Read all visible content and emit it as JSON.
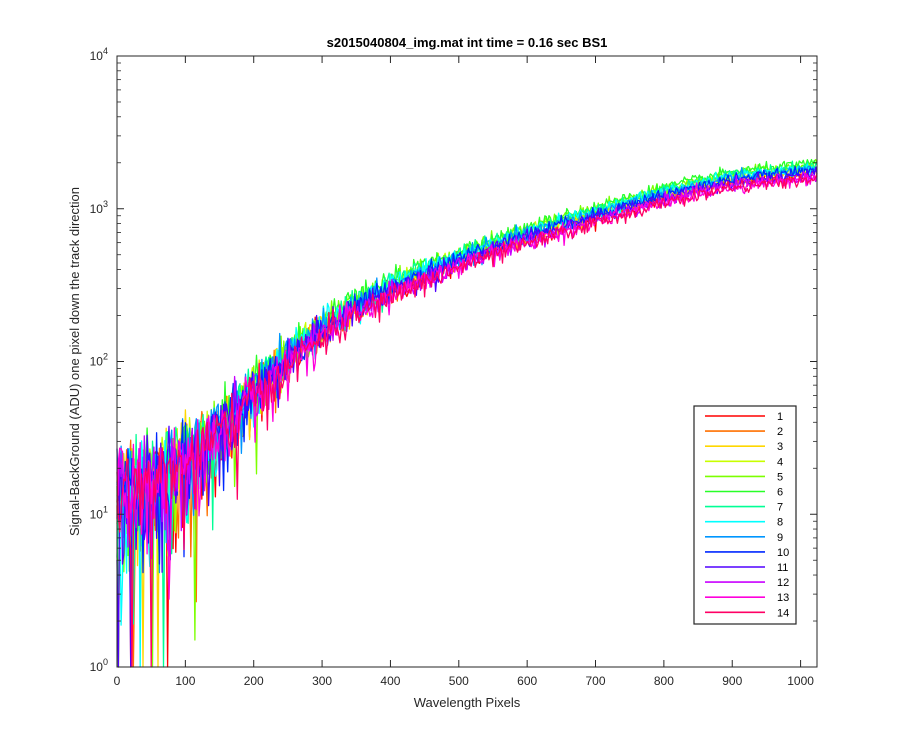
{
  "chart_data": {
    "type": "line",
    "title": "s2015040804_img.mat int time = 0.16 sec   BS1",
    "xlabel": "Wavelength Pixels",
    "ylabel": "Signal-BackGround (ADU) one pixel down the track direction",
    "xlim": [
      0,
      1024
    ],
    "ylim": [
      1,
      10000
    ],
    "yscale": "log",
    "grid": false,
    "legend_position": "lower-right",
    "x_ticks": [
      "0",
      "100",
      "200",
      "300",
      "400",
      "500",
      "600",
      "700",
      "800",
      "900",
      "1000"
    ],
    "y_ticks": [
      {
        "base": "10",
        "exp": "0"
      },
      {
        "base": "10",
        "exp": "1"
      },
      {
        "base": "10",
        "exp": "2"
      },
      {
        "base": "10",
        "exp": "3"
      },
      {
        "base": "10",
        "exp": "4"
      }
    ],
    "trend": {
      "x": [
        0,
        50,
        100,
        150,
        200,
        250,
        300,
        400,
        500,
        600,
        700,
        800,
        900,
        1024
      ],
      "y": [
        14,
        16,
        22,
        34,
        62,
        100,
        160,
        290,
        450,
        640,
        880,
        1180,
        1500,
        1700
      ]
    },
    "series": [
      {
        "name": "1",
        "color": "#ff0000",
        "scale": 1.0
      },
      {
        "name": "2",
        "color": "#ff7000",
        "scale": 1.02
      },
      {
        "name": "3",
        "color": "#ffd700",
        "scale": 1.05
      },
      {
        "name": "4",
        "color": "#c8ff00",
        "scale": 1.1
      },
      {
        "name": "5",
        "color": "#7cff00",
        "scale": 1.14
      },
      {
        "name": "6",
        "color": "#28ff28",
        "scale": 1.17
      },
      {
        "name": "7",
        "color": "#00ff96",
        "scale": 1.13
      },
      {
        "name": "8",
        "color": "#00ffff",
        "scale": 1.1
      },
      {
        "name": "9",
        "color": "#0096ff",
        "scale": 1.07
      },
      {
        "name": "10",
        "color": "#0028ff",
        "scale": 1.05
      },
      {
        "name": "11",
        "color": "#5000ff",
        "scale": 1.0
      },
      {
        "name": "12",
        "color": "#c800ff",
        "scale": 0.96
      },
      {
        "name": "13",
        "color": "#ff00dc",
        "scale": 0.93
      },
      {
        "name": "14",
        "color": "#ff0064",
        "scale": 0.92
      }
    ]
  }
}
